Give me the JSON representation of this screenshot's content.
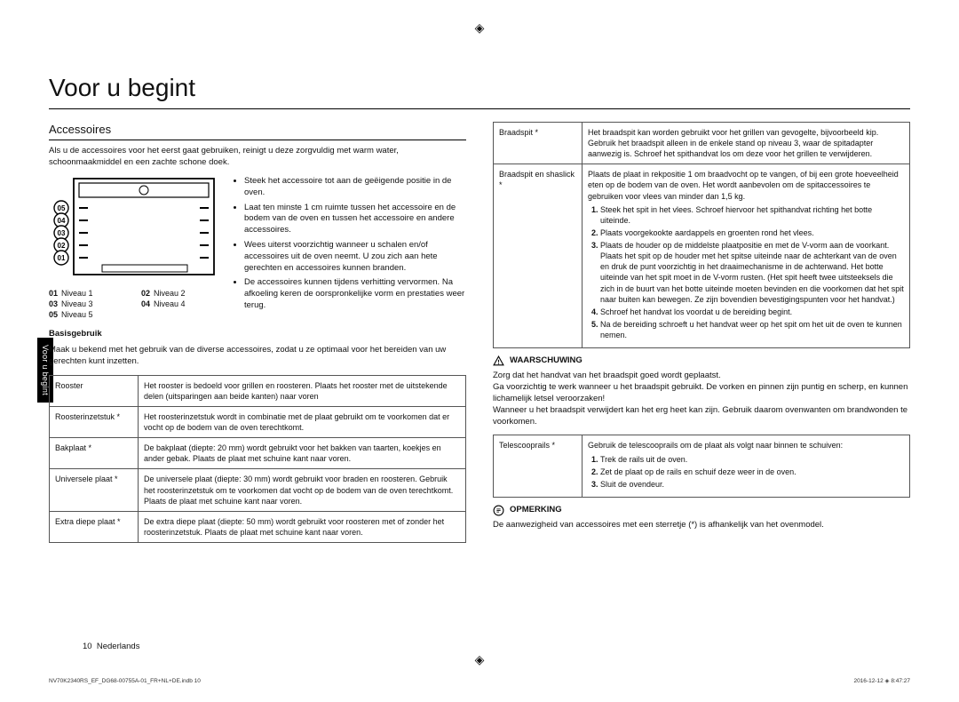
{
  "cropmark": "◈",
  "title": "Voor u begint",
  "sidetab": "Voor u begint",
  "left": {
    "subhead": "Accessoires",
    "intro": "Als u de accessoires voor het eerst gaat gebruiken, reinigt u deze zorgvuldig met warm water, schoonmaakmiddel en een zachte schone doek.",
    "oven": {
      "levels": [
        "05",
        "04",
        "03",
        "02",
        "01"
      ],
      "legend": [
        {
          "n": "01",
          "t": "Niveau 1"
        },
        {
          "n": "02",
          "t": "Niveau 2"
        },
        {
          "n": "03",
          "t": "Niveau 3"
        },
        {
          "n": "04",
          "t": "Niveau 4"
        },
        {
          "n": "05",
          "t": "Niveau 5"
        }
      ]
    },
    "bullets": [
      "Steek het accessoire tot aan de geëigende positie in de oven.",
      "Laat ten minste 1 cm ruimte tussen het accessoire en de bodem van de oven en tussen het accessoire en andere accessoires.",
      "Wees uiterst voorzichtig wanneer u schalen en/of accessoires uit de oven neemt. U zou zich aan hete gerechten en accessoires kunnen branden.",
      "De accessoires kunnen tijdens verhitting vervormen. Na afkoeling keren de oorspronkelijke vorm en prestaties weer terug."
    ],
    "basic_title": "Basisgebruik",
    "basic_intro": "Maak u bekend met het gebruik van de diverse accessoires, zodat u ze optimaal voor het bereiden van uw gerechten kunt inzetten.",
    "tableA": [
      {
        "name": "Rooster",
        "desc": "Het rooster is bedoeld voor grillen en roosteren. Plaats het rooster met de uitstekende delen (uitsparingen aan beide kanten) naar voren"
      },
      {
        "name": "Roosterinzetstuk *",
        "desc": "Het roosterinzetstuk wordt in combinatie met de plaat gebruikt om te voorkomen dat er vocht op de bodem van de oven terechtkomt."
      },
      {
        "name": "Bakplaat *",
        "desc": "De bakplaat (diepte: 20 mm) wordt gebruikt voor het bakken van taarten, koekjes en ander gebak. Plaats de plaat met schuine kant naar voren."
      },
      {
        "name": "Universele plaat *",
        "desc": "De universele plaat (diepte: 30 mm) wordt gebruikt voor braden en roosteren. Gebruik het roosterinzetstuk om te voorkomen dat vocht op de bodem van de oven terechtkomt.\nPlaats de plaat met schuine kant naar voren."
      },
      {
        "name": "Extra diepe plaat *",
        "desc": "De extra diepe plaat (diepte: 50 mm) wordt gebruikt voor roosteren met of zonder het roosterinzetstuk. Plaats de plaat met schuine kant naar voren."
      }
    ]
  },
  "right": {
    "tableB1": [
      {
        "name": "Braadspit *",
        "desc": "Het braadspit kan worden gebruikt voor het grillen van gevogelte, bijvoorbeeld kip. Gebruik het braadspit alleen in de enkele stand op niveau 3, waar de spitadapter aanwezig is. Schroef het spithandvat los om deze voor het grillen te verwijderen."
      }
    ],
    "braad_name": "Braadspit en shaslick *",
    "braad_intro": "Plaats de plaat in rekpositie 1 om braadvocht op te vangen, of bij een grote hoeveelheid eten op de bodem van de oven. Het wordt aanbevolen om de spitaccessoires te gebruiken voor vlees van minder dan 1,5 kg.",
    "braad_steps": [
      "Steek het spit in het vlees. Schroef hiervoor het spithandvat richting het botte uiteinde.",
      "Plaats voorgekookte aardappels en groenten rond het vlees.",
      "Plaats de houder op de middelste plaatpositie en met de V-vorm aan de voorkant. Plaats het spit op de houder met het spitse uiteinde naar de achterkant van de oven en druk de punt voorzichtig in het draaimechanisme in de achterwand. Het botte uiteinde van het spit moet in de V-vorm rusten. (Het spit heeft twee uitsteeksels die zich in de buurt van het botte uiteinde moeten bevinden en die voorkomen dat het spit naar buiten kan bewegen. Ze zijn bovendien bevestigingspunten voor het handvat.)",
      "Schroef het handvat los voordat u de bereiding begint.",
      "Na de bereiding schroeft u het handvat weer op het spit om het uit de oven te kunnen nemen."
    ],
    "warn_label": "WAARSCHUWING",
    "warn_text": "Zorg dat het handvat van het braadspit goed wordt geplaatst.\nGa voorzichtig te werk wanneer u het braadspit gebruikt. De vorken en pinnen zijn puntig en scherp, en kunnen lichamelijk letsel veroorzaken!\nWanneer u het braadspit verwijdert kan het erg heet kan zijn. Gebruik daarom ovenwanten om brandwonden te voorkomen.",
    "tele_name": "Telescooprails *",
    "tele_intro": "Gebruik de telescooprails om de plaat als volgt naar binnen te schuiven:",
    "tele_steps": [
      "Trek de rails uit de oven.",
      "Zet de plaat op de rails en schuif deze weer in de oven.",
      "Sluit de ovendeur."
    ],
    "note_label": "OPMERKING",
    "note_text": "De aanwezigheid van accessoires met een sterretje (*) is afhankelijk van het ovenmodel."
  },
  "pagenum_label": "10",
  "pagenum_lang": "Nederlands",
  "footer_left": "NV70K2340RS_EF_DG68-00755A-01_FR+NL+DE.indb   10",
  "footer_right": "2016-12-12   ◈ 8:47:27"
}
